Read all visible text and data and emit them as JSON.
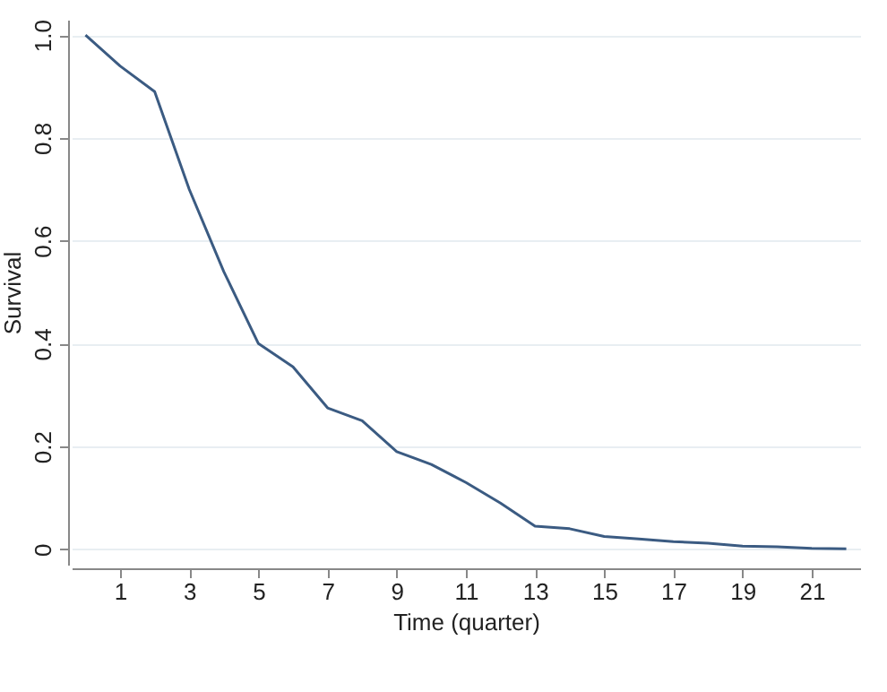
{
  "chart_data": {
    "type": "line",
    "xlabel": "Time (quarter)",
    "ylabel": "Survival",
    "x": [
      0,
      1,
      2,
      3,
      4,
      5,
      6,
      7,
      8,
      9,
      10,
      11,
      12,
      13,
      14,
      15,
      16,
      17,
      18,
      19,
      20,
      21,
      22
    ],
    "series": [
      {
        "color": "#3b5b82",
        "values": [
          1.0,
          0.94,
          0.89,
          0.7,
          0.54,
          0.4,
          0.355,
          0.275,
          0.25,
          0.19,
          0.165,
          0.13,
          0.09,
          0.045,
          0.04,
          0.025,
          0.02,
          0.015,
          0.012,
          0.006,
          0.005,
          0.002,
          0.001
        ]
      }
    ],
    "xlim": [
      -0.4,
      22.4
    ],
    "ylim": [
      -0.03,
      1.03
    ],
    "xticks": [
      1,
      3,
      5,
      7,
      9,
      11,
      13,
      15,
      17,
      19,
      21
    ],
    "yticks": [
      {
        "value": 0,
        "label": "0"
      },
      0.2,
      0.4,
      0.6,
      0.8,
      {
        "value": 1,
        "label": "1.0"
      }
    ],
    "grid": "y",
    "marker": "none",
    "line_style": "solid"
  }
}
